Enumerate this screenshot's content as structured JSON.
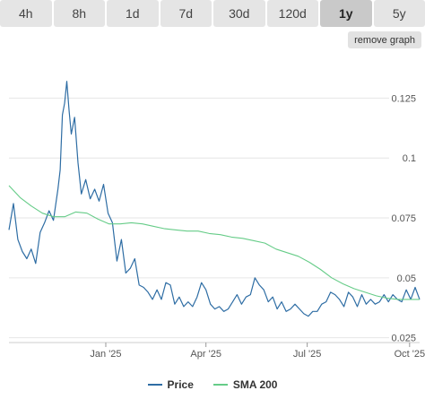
{
  "tabs": [
    {
      "label": "4h"
    },
    {
      "label": "8h"
    },
    {
      "label": "1d"
    },
    {
      "label": "7d"
    },
    {
      "label": "30d"
    },
    {
      "label": "120d"
    },
    {
      "label": "1y"
    },
    {
      "label": "5y"
    }
  ],
  "active_tab": "1y",
  "remove_graph_label": "remove graph",
  "colors": {
    "price": "#2e6da4",
    "sma": "#66cc88",
    "grid": "#e6e6e6",
    "axis": "#555555"
  },
  "chart_data": {
    "type": "line",
    "x_ticks": [
      "Jan '25",
      "Apr '25",
      "Jul '25",
      "Oct '25"
    ],
    "y_ticks": [
      "0.125",
      "0.1",
      "0.075",
      "0.05",
      "0.025"
    ],
    "ylim": [
      0.023,
      0.142
    ],
    "series": [
      {
        "name": "Price",
        "x": [
          "2024-10-06",
          "2024-10-10",
          "2024-10-14",
          "2024-10-18",
          "2024-10-22",
          "2024-10-26",
          "2024-10-30",
          "2024-11-03",
          "2024-11-07",
          "2024-11-11",
          "2024-11-15",
          "2024-11-19",
          "2024-11-21",
          "2024-11-23",
          "2024-11-25",
          "2024-11-27",
          "2024-11-29",
          "2024-12-01",
          "2024-12-04",
          "2024-12-07",
          "2024-12-10",
          "2024-12-14",
          "2024-12-18",
          "2024-12-22",
          "2024-12-26",
          "2024-12-30",
          "2025-01-03",
          "2025-01-07",
          "2025-01-11",
          "2025-01-15",
          "2025-01-19",
          "2025-01-23",
          "2025-01-27",
          "2025-01-31",
          "2025-02-04",
          "2025-02-08",
          "2025-02-12",
          "2025-02-16",
          "2025-02-20",
          "2025-02-24",
          "2025-02-28",
          "2025-03-04",
          "2025-03-08",
          "2025-03-12",
          "2025-03-16",
          "2025-03-20",
          "2025-03-24",
          "2025-03-28",
          "2025-04-01",
          "2025-04-05",
          "2025-04-09",
          "2025-04-13",
          "2025-04-17",
          "2025-04-21",
          "2025-04-25",
          "2025-04-29",
          "2025-05-03",
          "2025-05-07",
          "2025-05-11",
          "2025-05-15",
          "2025-05-19",
          "2025-05-23",
          "2025-05-27",
          "2025-05-31",
          "2025-06-04",
          "2025-06-08",
          "2025-06-12",
          "2025-06-16",
          "2025-06-20",
          "2025-06-24",
          "2025-06-28",
          "2025-07-02",
          "2025-07-06",
          "2025-07-10",
          "2025-07-14",
          "2025-07-18",
          "2025-07-22",
          "2025-07-26",
          "2025-07-30",
          "2025-08-03",
          "2025-08-07",
          "2025-08-11",
          "2025-08-15",
          "2025-08-19",
          "2025-08-23",
          "2025-08-27",
          "2025-08-31",
          "2025-09-04",
          "2025-09-08",
          "2025-09-12",
          "2025-09-16",
          "2025-09-20",
          "2025-09-24",
          "2025-09-28",
          "2025-10-02",
          "2025-10-06",
          "2025-10-10"
        ],
        "values": [
          0.07,
          0.081,
          0.066,
          0.061,
          0.058,
          0.062,
          0.056,
          0.069,
          0.073,
          0.078,
          0.074,
          0.087,
          0.095,
          0.118,
          0.123,
          0.132,
          0.12,
          0.11,
          0.117,
          0.098,
          0.085,
          0.091,
          0.083,
          0.087,
          0.082,
          0.089,
          0.077,
          0.073,
          0.057,
          0.066,
          0.052,
          0.054,
          0.058,
          0.047,
          0.046,
          0.044,
          0.041,
          0.045,
          0.041,
          0.048,
          0.047,
          0.039,
          0.042,
          0.038,
          0.04,
          0.038,
          0.042,
          0.048,
          0.045,
          0.039,
          0.037,
          0.038,
          0.036,
          0.037,
          0.04,
          0.043,
          0.039,
          0.042,
          0.043,
          0.05,
          0.047,
          0.045,
          0.04,
          0.042,
          0.037,
          0.04,
          0.036,
          0.037,
          0.039,
          0.037,
          0.035,
          0.034,
          0.036,
          0.036,
          0.039,
          0.04,
          0.044,
          0.043,
          0.041,
          0.038,
          0.044,
          0.042,
          0.038,
          0.043,
          0.039,
          0.041,
          0.039,
          0.04,
          0.043,
          0.04,
          0.043,
          0.041,
          0.04,
          0.045,
          0.041,
          0.046,
          0.041
        ]
      },
      {
        "name": "SMA 200",
        "x": [
          "2024-10-06",
          "2024-10-16",
          "2024-10-26",
          "2024-11-05",
          "2024-11-15",
          "2024-11-25",
          "2024-12-05",
          "2024-12-15",
          "2024-12-25",
          "2025-01-04",
          "2025-01-14",
          "2025-01-24",
          "2025-02-03",
          "2025-02-13",
          "2025-02-23",
          "2025-03-05",
          "2025-03-15",
          "2025-03-25",
          "2025-04-04",
          "2025-04-14",
          "2025-04-24",
          "2025-05-04",
          "2025-05-14",
          "2025-05-24",
          "2025-06-03",
          "2025-06-13",
          "2025-06-23",
          "2025-07-03",
          "2025-07-13",
          "2025-07-23",
          "2025-08-02",
          "2025-08-12",
          "2025-08-22",
          "2025-09-01",
          "2025-09-11",
          "2025-09-21",
          "2025-10-01",
          "2025-10-10"
        ],
        "values": [
          0.0885,
          0.0835,
          0.08,
          0.077,
          0.0755,
          0.0755,
          0.0775,
          0.077,
          0.0745,
          0.0725,
          0.0725,
          0.073,
          0.0725,
          0.0715,
          0.0705,
          0.07,
          0.0695,
          0.0695,
          0.0685,
          0.068,
          0.067,
          0.0665,
          0.0655,
          0.0645,
          0.062,
          0.0605,
          0.059,
          0.0565,
          0.0535,
          0.05,
          0.0475,
          0.0455,
          0.044,
          0.0425,
          0.0415,
          0.041,
          0.041,
          0.041
        ]
      }
    ],
    "grid": true,
    "legend_position": "bottom-center"
  }
}
